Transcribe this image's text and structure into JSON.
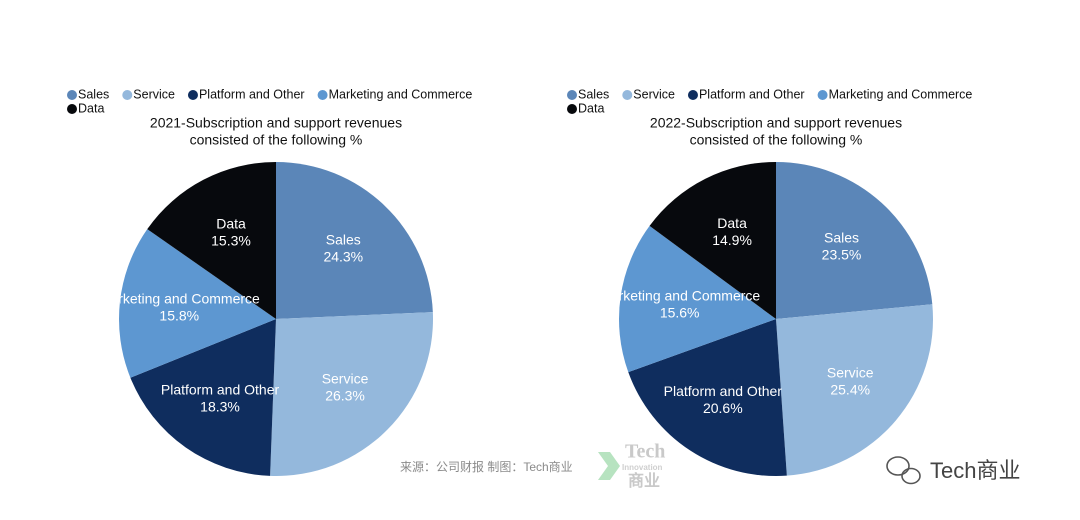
{
  "chart_data": [
    {
      "type": "pie",
      "title": [
        "2021-Subscription and support revenues",
        "consisted of the following  %"
      ],
      "categories": [
        "Sales",
        "Service",
        "Platform and Other",
        "Marketing and Commerce",
        "Data"
      ],
      "values": [
        24.3,
        26.3,
        18.3,
        15.8,
        15.3
      ],
      "value_labels": [
        "24.3%",
        "26.3%",
        "18.3%",
        "15.8%",
        "15.3%"
      ],
      "colors": [
        "#5b86b8",
        "#94b8dc",
        "#0f2d5e",
        "#5d97d1",
        "#07090d"
      ],
      "legend": "top-left"
    },
    {
      "type": "pie",
      "title": [
        "2022-Subscription and support revenues",
        "consisted of the following  %"
      ],
      "categories": [
        "Sales",
        "Service",
        "Platform and Other",
        "Marketing and Commerce",
        "Data"
      ],
      "values": [
        23.5,
        25.4,
        20.6,
        15.6,
        14.9
      ],
      "value_labels": [
        "23.5%",
        "25.4%",
        "20.6%",
        "15.6%",
        "14.9%"
      ],
      "colors": [
        "#5b86b8",
        "#94b8dc",
        "#0f2d5e",
        "#5d97d1",
        "#07090d"
      ],
      "legend": "top-left"
    }
  ],
  "footer": {
    "source": "来源：公司财报 制图：Tech商业",
    "logo": [
      "Tech",
      "Innovation",
      "商业"
    ],
    "watermark": "Tech商业"
  }
}
